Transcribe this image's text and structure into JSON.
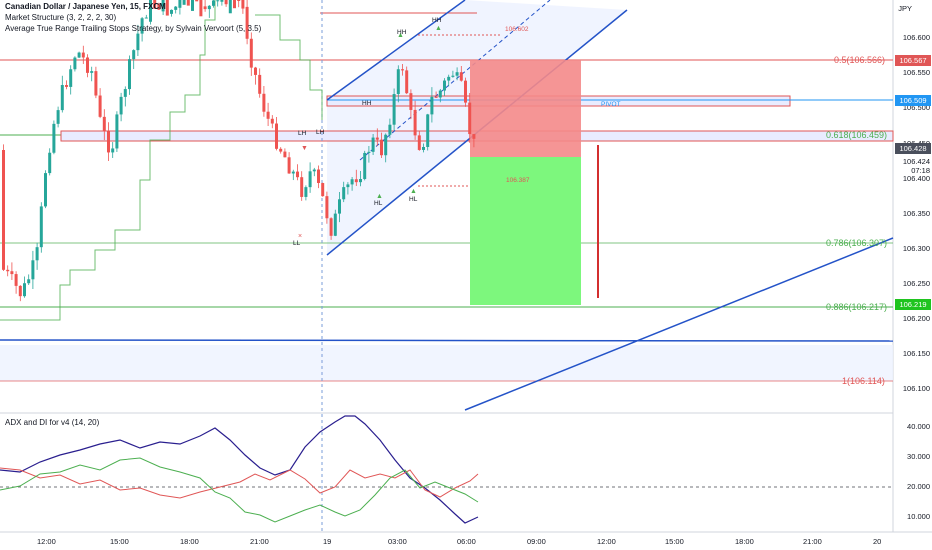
{
  "header": {
    "title": "Canadian Dollar / Japanese Yen, 15, FXCM",
    "indicator1": "Market Structure (3, 2, 2, 2, 30)",
    "indicator2": "Average True Range Trailing Stops Strategy, by Sylvain Vervoort (5, 3.5)",
    "currency": "JPY"
  },
  "price_axis": [
    "106.600",
    "106.550",
    "106.500",
    "106.450",
    "106.400",
    "106.350",
    "106.300",
    "106.250",
    "106.200",
    "106.150",
    "106.100"
  ],
  "price_tags": {
    "tag1": "106.567",
    "tag2": "106.509",
    "tag3a": "106.428",
    "tag3b": "106.424",
    "tag3c": "07:18",
    "tag4": "106.219"
  },
  "fib": {
    "f05": "0.5(106.566)",
    "f0618": "0.618(106.459)",
    "f0786": "0.786(106.307)",
    "f0886": "0.886(106.217)",
    "f1": "1(106.114)"
  },
  "annotations": {
    "pivot": "PIVOT",
    "level_high": "106.602",
    "level_low": "106.387",
    "hh1": "HH",
    "hh2": "HH",
    "hh3": "HH",
    "lh": "LH",
    "lh2": "LH",
    "hl1": "HL",
    "hl2": "HL",
    "ll": "LL"
  },
  "sub_panel": {
    "title": "ADX and DI for v4 (14, 20)",
    "axis": [
      "40.000",
      "30.000",
      "20.000",
      "10.000"
    ],
    "tag": "20.000"
  },
  "time_axis": [
    "12:00",
    "15:00",
    "18:00",
    "21:00",
    "19",
    "03:00",
    "06:00",
    "09:00",
    "12:00",
    "15:00",
    "18:00",
    "21:00",
    "20"
  ],
  "colors": {
    "red_zone": "#f48a8a",
    "green_zone": "#7df77d",
    "channel": "#2453c8",
    "fib_red": "#e05656",
    "fib_green": "#4caf50",
    "pivot_blue": "#2196f3"
  }
}
